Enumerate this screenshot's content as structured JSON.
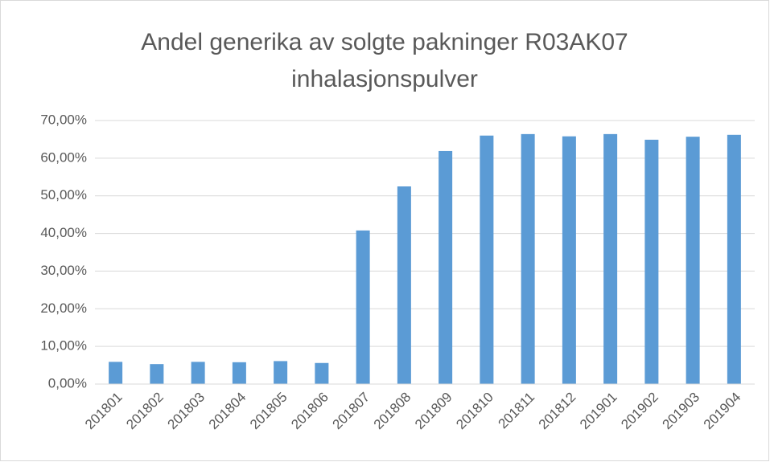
{
  "chart_data": {
    "type": "bar",
    "title": "Andel generika av solgte pakninger R03AK07 inhalasjonspulver",
    "categories": [
      "201801",
      "201802",
      "201803",
      "201804",
      "201805",
      "201806",
      "201807",
      "201808",
      "201809",
      "201810",
      "201811",
      "201812",
      "201901",
      "201902",
      "201903",
      "201904"
    ],
    "values": [
      5.9,
      5.3,
      5.9,
      5.8,
      6.1,
      5.6,
      40.8,
      52.5,
      61.9,
      66.0,
      66.4,
      65.8,
      66.4,
      64.9,
      65.7,
      66.2
    ],
    "color": "#5b9bd5",
    "ylim": [
      0,
      70
    ],
    "yticks": [
      {
        "value": 0,
        "label": "0,00%"
      },
      {
        "value": 10,
        "label": "10,00%"
      },
      {
        "value": 20,
        "label": "20,00%"
      },
      {
        "value": 30,
        "label": "30,00%"
      },
      {
        "value": 40,
        "label": "40,00%"
      },
      {
        "value": 50,
        "label": "50,00%"
      },
      {
        "value": 60,
        "label": "60,00%"
      },
      {
        "value": 70,
        "label": "70,00%"
      }
    ],
    "grid": true
  }
}
